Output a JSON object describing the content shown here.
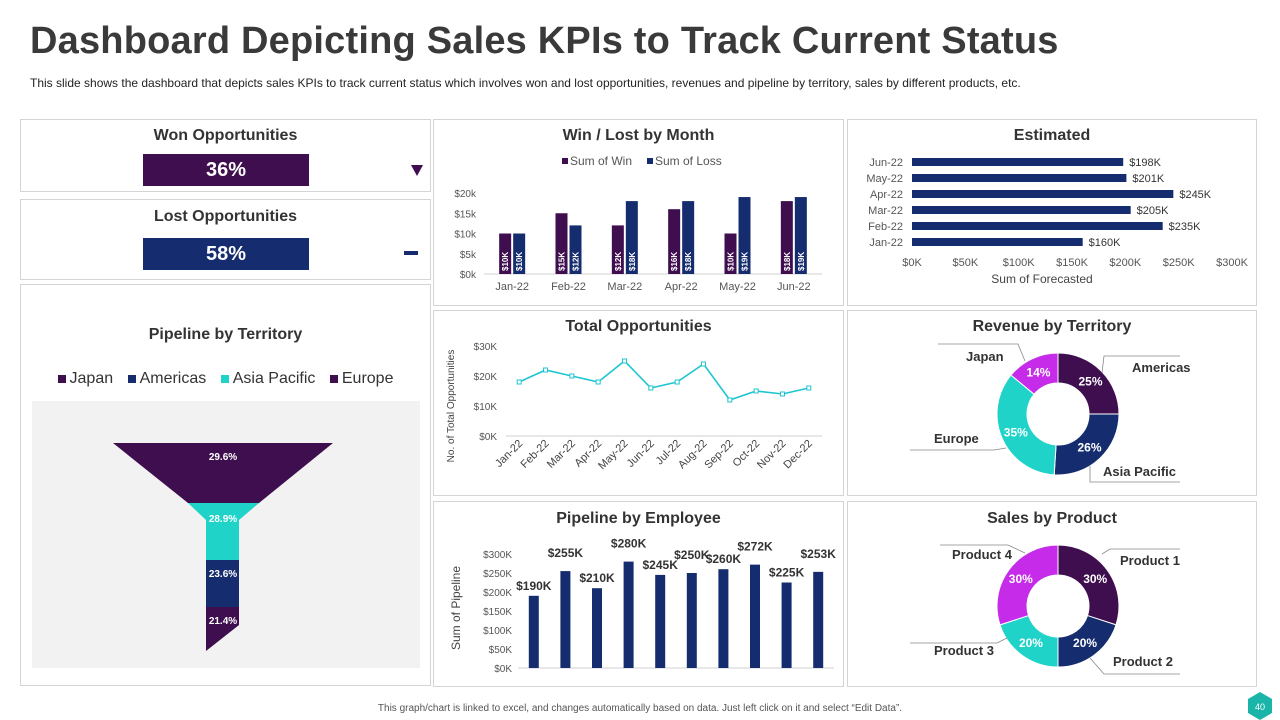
{
  "header": {
    "title": "Dashboard Depicting Sales KPIs to Track Current Status",
    "subtitle": "This slide shows the dashboard that depicts sales KPIs to track current status which involves won and lost opportunities, revenues and pipeline by territory, sales by different products, etc."
  },
  "colors": {
    "purple": "#3e0e4f",
    "navy": "#152c6e",
    "teal": "#1fd3c9",
    "magenta": "#c52be8",
    "line": "#1fc5d1",
    "funnel_bg": "#f2f2f2"
  },
  "won": {
    "title": "Won Opportunities",
    "value": "36%",
    "indicator_icon": "down-triangle-icon"
  },
  "lost": {
    "title": "Lost Opportunities",
    "value": "58%",
    "indicator_icon": "dash-icon"
  },
  "footer": {
    "note": "This graph/chart is linked to excel, and changes automatically based on data. Just left click on it and select “Edit Data”.",
    "page_number": "40"
  },
  "chart_data": [
    {
      "id": "win_lost",
      "type": "bar",
      "title": "Win / Lost by Month",
      "categories": [
        "Jan-22",
        "Feb-22",
        "Mar-22",
        "Apr-22",
        "May-22",
        "Jun-22"
      ],
      "series": [
        {
          "name": "Sum of Win",
          "values": [
            10,
            15,
            12,
            16,
            10,
            18
          ],
          "labels": [
            "$10K",
            "$15K",
            "$12K",
            "$16K",
            "$10K",
            "$18K"
          ]
        },
        {
          "name": "Sum of Loss",
          "values": [
            10,
            12,
            18,
            18,
            19,
            19
          ],
          "labels": [
            "$10K",
            "$12K",
            "$18K",
            "$18K",
            "$19K",
            "$19K"
          ]
        }
      ],
      "yticks": [
        "$0k",
        "$5k",
        "$10k",
        "$15k",
        "$20k"
      ],
      "ylim": [
        0,
        20
      ],
      "legend": "top"
    },
    {
      "id": "estimated",
      "type": "bar",
      "orientation": "horizontal",
      "title": "Estimated",
      "categories": [
        "Jun-22",
        "May-22",
        "Apr-22",
        "Mar-22",
        "Feb-22",
        "Jan-22"
      ],
      "values": [
        198,
        201,
        245,
        205,
        235,
        160
      ],
      "labels": [
        "$198K",
        "$201K",
        "$245K",
        "$205K",
        "$235K",
        "$160K"
      ],
      "xticks": [
        "$0K",
        "$50K",
        "$100K",
        "$150K",
        "$200K",
        "$250K",
        "$300K"
      ],
      "xlim": [
        0,
        300
      ],
      "xlabel": "Sum of Forecasted"
    },
    {
      "id": "total_opps",
      "type": "line",
      "title": "Total Opportunities",
      "categories": [
        "Jan-22",
        "Feb-22",
        "Mar-22",
        "Apr-22",
        "May-22",
        "Jun-22",
        "Jul-22",
        "Aug-22",
        "Sep-22",
        "Oct-22",
        "Nov-22",
        "Dec-22"
      ],
      "values": [
        18,
        22,
        20,
        18,
        25,
        16,
        18,
        24,
        12,
        15,
        14,
        16
      ],
      "yticks": [
        "$0K",
        "$10K",
        "$20K",
        "$30K"
      ],
      "ylim": [
        0,
        30
      ],
      "ylabel": "No. of Total Opportunities"
    },
    {
      "id": "revenue_territory",
      "type": "pie",
      "title": "Revenue by Territory",
      "labels": [
        "Americas",
        "Asia Pacific",
        "Europe",
        "Japan"
      ],
      "values": [
        25,
        26,
        35,
        14
      ],
      "value_labels": [
        "25%",
        "26%",
        "35%",
        "14%"
      ]
    },
    {
      "id": "pipeline_employee",
      "type": "bar",
      "title": "Pipeline by Employee",
      "values": [
        190,
        255,
        210,
        280,
        245,
        250,
        260,
        272,
        225,
        253
      ],
      "labels": [
        "$190K",
        "$255K",
        "$210K",
        "$280K",
        "$245K",
        "$250K",
        "$260K",
        "$272K",
        "$225K",
        "$253K"
      ],
      "yticks": [
        "$0K",
        "$50K",
        "$100K",
        "$150K",
        "$200K",
        "$250K",
        "$300K"
      ],
      "ylim": [
        0,
        300
      ],
      "ylabel": "Sum of Pipeline"
    },
    {
      "id": "sales_product",
      "type": "pie",
      "title": "Sales by Product",
      "labels": [
        "Product 1",
        "Product 2",
        "Product 3",
        "Product 4"
      ],
      "values": [
        30,
        20,
        20,
        30
      ],
      "value_labels": [
        "30%",
        "20%",
        "20%",
        "30%"
      ]
    },
    {
      "id": "pipeline_territory",
      "type": "funnel",
      "title": "Pipeline by Territory",
      "legend": [
        "Japan",
        "Americas",
        "Asia Pacific",
        "Europe"
      ],
      "values": [
        29.6,
        28.9,
        23.6,
        21.4
      ],
      "value_labels": [
        "29.6%",
        "28.9%",
        "23.6%",
        "21.4%"
      ]
    }
  ]
}
